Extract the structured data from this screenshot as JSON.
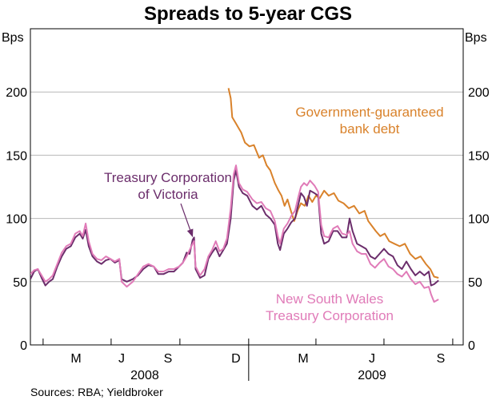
{
  "chart_data": {
    "type": "line",
    "title": "Spreads to 5-year CGS",
    "y_unit_left": "Bps",
    "y_unit_right": "Bps",
    "ylim": [
      0,
      250
    ],
    "yticks": [
      0,
      50,
      100,
      150,
      200
    ],
    "x_range": [
      "2008-03-15",
      "2009-10-15"
    ],
    "month_labels": [
      {
        "label": "M",
        "date": "2008-05-15"
      },
      {
        "label": "J",
        "date": "2008-07-15"
      },
      {
        "label": "S",
        "date": "2008-09-15"
      },
      {
        "label": "D",
        "date": "2008-12-15"
      },
      {
        "label": "M",
        "date": "2009-03-15"
      },
      {
        "label": "J",
        "date": "2009-06-15"
      },
      {
        "label": "S",
        "date": "2009-09-15"
      }
    ],
    "year_labels": [
      {
        "label": "2008",
        "date": "2008-08-15"
      },
      {
        "label": "2009",
        "date": "2009-06-15"
      }
    ],
    "grid": true,
    "series": [
      {
        "name": "Government-guaranteed bank debt",
        "color": "#d9822b",
        "label_lines": [
          "Government-guaranteed",
          "bank debt"
        ],
        "points": [
          [
            "2008-12-05",
            203
          ],
          [
            "2008-12-08",
            195
          ],
          [
            "2008-12-10",
            180
          ],
          [
            "2008-12-15",
            175
          ],
          [
            "2008-12-18",
            172
          ],
          [
            "2008-12-22",
            168
          ],
          [
            "2008-12-27",
            160
          ],
          [
            "2009-01-02",
            157
          ],
          [
            "2009-01-08",
            158
          ],
          [
            "2009-01-15",
            148
          ],
          [
            "2009-01-20",
            150
          ],
          [
            "2009-01-25",
            142
          ],
          [
            "2009-01-30",
            138
          ],
          [
            "2009-02-05",
            128
          ],
          [
            "2009-02-10",
            122
          ],
          [
            "2009-02-14",
            118
          ],
          [
            "2009-02-18",
            110
          ],
          [
            "2009-02-22",
            115
          ],
          [
            "2009-02-27",
            105
          ],
          [
            "2009-03-03",
            98
          ],
          [
            "2009-03-08",
            107
          ],
          [
            "2009-03-12",
            112
          ],
          [
            "2009-03-17",
            110
          ],
          [
            "2009-03-22",
            118
          ],
          [
            "2009-03-27",
            113
          ],
          [
            "2009-04-01",
            118
          ],
          [
            "2009-04-06",
            116
          ],
          [
            "2009-04-12",
            122
          ],
          [
            "2009-04-18",
            118
          ],
          [
            "2009-04-25",
            120
          ],
          [
            "2009-05-01",
            114
          ],
          [
            "2009-05-08",
            112
          ],
          [
            "2009-05-15",
            108
          ],
          [
            "2009-05-22",
            110
          ],
          [
            "2009-05-29",
            104
          ],
          [
            "2009-06-05",
            106
          ],
          [
            "2009-06-10",
            98
          ],
          [
            "2009-06-15",
            94
          ],
          [
            "2009-06-20",
            90
          ],
          [
            "2009-06-26",
            86
          ],
          [
            "2009-07-02",
            88
          ],
          [
            "2009-07-08",
            82
          ],
          [
            "2009-07-15",
            80
          ],
          [
            "2009-07-22",
            78
          ],
          [
            "2009-07-29",
            80
          ],
          [
            "2009-08-05",
            72
          ],
          [
            "2009-08-12",
            68
          ],
          [
            "2009-08-19",
            70
          ],
          [
            "2009-08-26",
            64
          ],
          [
            "2009-09-01",
            60
          ],
          [
            "2009-09-06",
            54
          ],
          [
            "2009-09-12",
            53
          ]
        ]
      },
      {
        "name": "Treasury Corporation of Victoria",
        "color": "#6b2d6b",
        "label_lines": [
          "Treasury Corporation",
          "of Victoria"
        ],
        "points": [
          [
            "2008-03-15",
            52
          ],
          [
            "2008-03-20",
            58
          ],
          [
            "2008-03-25",
            60
          ],
          [
            "2008-03-30",
            53
          ],
          [
            "2008-04-04",
            47
          ],
          [
            "2008-04-09",
            50
          ],
          [
            "2008-04-14",
            52
          ],
          [
            "2008-04-20",
            62
          ],
          [
            "2008-04-26",
            70
          ],
          [
            "2008-05-02",
            76
          ],
          [
            "2008-05-08",
            78
          ],
          [
            "2008-05-14",
            85
          ],
          [
            "2008-05-20",
            88
          ],
          [
            "2008-05-24",
            84
          ],
          [
            "2008-05-28",
            91
          ],
          [
            "2008-06-01",
            78
          ],
          [
            "2008-06-06",
            70
          ],
          [
            "2008-06-12",
            66
          ],
          [
            "2008-06-18",
            64
          ],
          [
            "2008-06-24",
            67
          ],
          [
            "2008-06-30",
            68
          ],
          [
            "2008-07-06",
            65
          ],
          [
            "2008-07-12",
            67
          ],
          [
            "2008-07-15",
            52
          ],
          [
            "2008-07-22",
            50
          ],
          [
            "2008-07-30",
            52
          ],
          [
            "2008-08-06",
            55
          ],
          [
            "2008-08-13",
            60
          ],
          [
            "2008-08-20",
            63
          ],
          [
            "2008-08-27",
            62
          ],
          [
            "2008-09-02",
            56
          ],
          [
            "2008-09-09",
            56
          ],
          [
            "2008-09-16",
            58
          ],
          [
            "2008-09-23",
            58
          ],
          [
            "2008-09-30",
            62
          ],
          [
            "2008-10-05",
            65
          ],
          [
            "2008-10-10",
            73
          ],
          [
            "2008-10-14",
            72
          ],
          [
            "2008-10-18",
            83
          ],
          [
            "2008-10-20",
            85
          ],
          [
            "2008-10-22",
            60
          ],
          [
            "2008-10-28",
            53
          ],
          [
            "2008-11-03",
            55
          ],
          [
            "2008-11-08",
            68
          ],
          [
            "2008-11-13",
            73
          ],
          [
            "2008-11-18",
            77
          ],
          [
            "2008-11-23",
            70
          ],
          [
            "2008-11-28",
            75
          ],
          [
            "2008-12-03",
            80
          ],
          [
            "2008-12-08",
            100
          ],
          [
            "2008-12-12",
            130
          ],
          [
            "2008-12-15",
            138
          ],
          [
            "2008-12-19",
            125
          ],
          [
            "2008-12-24",
            120
          ],
          [
            "2008-12-30",
            118
          ],
          [
            "2009-01-06",
            110
          ],
          [
            "2009-01-12",
            107
          ],
          [
            "2009-01-18",
            110
          ],
          [
            "2009-01-24",
            103
          ],
          [
            "2009-01-30",
            100
          ],
          [
            "2009-02-05",
            95
          ],
          [
            "2009-02-09",
            80
          ],
          [
            "2009-02-12",
            75
          ],
          [
            "2009-02-17",
            88
          ],
          [
            "2009-02-22",
            92
          ],
          [
            "2009-02-27",
            97
          ],
          [
            "2009-03-04",
            100
          ],
          [
            "2009-03-08",
            110
          ],
          [
            "2009-03-12",
            120
          ],
          [
            "2009-03-16",
            117
          ],
          [
            "2009-03-20",
            110
          ],
          [
            "2009-03-24",
            122
          ],
          [
            "2009-03-30",
            120
          ],
          [
            "2009-04-04",
            118
          ],
          [
            "2009-04-08",
            88
          ],
          [
            "2009-04-12",
            80
          ],
          [
            "2009-04-18",
            82
          ],
          [
            "2009-04-24",
            90
          ],
          [
            "2009-04-30",
            90
          ],
          [
            "2009-05-06",
            85
          ],
          [
            "2009-05-12",
            85
          ],
          [
            "2009-05-16",
            100
          ],
          [
            "2009-05-20",
            90
          ],
          [
            "2009-05-26",
            80
          ],
          [
            "2009-06-01",
            78
          ],
          [
            "2009-06-07",
            76
          ],
          [
            "2009-06-13",
            70
          ],
          [
            "2009-06-19",
            68
          ],
          [
            "2009-06-25",
            72
          ],
          [
            "2009-07-01",
            76
          ],
          [
            "2009-07-07",
            72
          ],
          [
            "2009-07-13",
            70
          ],
          [
            "2009-07-19",
            63
          ],
          [
            "2009-07-25",
            60
          ],
          [
            "2009-07-31",
            66
          ],
          [
            "2009-08-06",
            60
          ],
          [
            "2009-08-12",
            55
          ],
          [
            "2009-08-18",
            58
          ],
          [
            "2009-08-24",
            55
          ],
          [
            "2009-08-30",
            58
          ],
          [
            "2009-09-02",
            47
          ],
          [
            "2009-09-06",
            48
          ],
          [
            "2009-09-12",
            51
          ]
        ]
      },
      {
        "name": "New South Wales Treasury Corporation",
        "color": "#e07bb8",
        "label_lines": [
          "New South Wales",
          "Treasury Corporation"
        ],
        "points": [
          [
            "2008-03-15",
            56
          ],
          [
            "2008-03-20",
            59
          ],
          [
            "2008-03-25",
            60
          ],
          [
            "2008-03-30",
            55
          ],
          [
            "2008-04-04",
            50
          ],
          [
            "2008-04-09",
            52
          ],
          [
            "2008-04-14",
            55
          ],
          [
            "2008-04-20",
            64
          ],
          [
            "2008-04-26",
            73
          ],
          [
            "2008-05-02",
            78
          ],
          [
            "2008-05-08",
            80
          ],
          [
            "2008-05-14",
            88
          ],
          [
            "2008-05-20",
            90
          ],
          [
            "2008-05-24",
            86
          ],
          [
            "2008-05-28",
            96
          ],
          [
            "2008-06-01",
            82
          ],
          [
            "2008-06-06",
            72
          ],
          [
            "2008-06-12",
            68
          ],
          [
            "2008-06-18",
            67
          ],
          [
            "2008-06-24",
            70
          ],
          [
            "2008-06-30",
            68
          ],
          [
            "2008-07-06",
            66
          ],
          [
            "2008-07-12",
            68
          ],
          [
            "2008-07-15",
            50
          ],
          [
            "2008-07-22",
            46
          ],
          [
            "2008-07-30",
            50
          ],
          [
            "2008-08-06",
            56
          ],
          [
            "2008-08-13",
            62
          ],
          [
            "2008-08-20",
            64
          ],
          [
            "2008-08-27",
            62
          ],
          [
            "2008-09-02",
            58
          ],
          [
            "2008-09-09",
            58
          ],
          [
            "2008-09-16",
            60
          ],
          [
            "2008-09-23",
            60
          ],
          [
            "2008-09-30",
            62
          ],
          [
            "2008-10-05",
            65
          ],
          [
            "2008-10-10",
            70
          ],
          [
            "2008-10-14",
            75
          ],
          [
            "2008-10-18",
            80
          ],
          [
            "2008-10-20",
            82
          ],
          [
            "2008-10-22",
            62
          ],
          [
            "2008-10-28",
            55
          ],
          [
            "2008-11-03",
            60
          ],
          [
            "2008-11-08",
            70
          ],
          [
            "2008-11-13",
            75
          ],
          [
            "2008-11-18",
            82
          ],
          [
            "2008-11-23",
            74
          ],
          [
            "2008-11-28",
            76
          ],
          [
            "2008-12-03",
            84
          ],
          [
            "2008-12-08",
            108
          ],
          [
            "2008-12-12",
            135
          ],
          [
            "2008-12-15",
            142
          ],
          [
            "2008-12-19",
            128
          ],
          [
            "2008-12-24",
            123
          ],
          [
            "2008-12-30",
            121
          ],
          [
            "2009-01-06",
            115
          ],
          [
            "2009-01-12",
            112
          ],
          [
            "2009-01-18",
            113
          ],
          [
            "2009-01-24",
            108
          ],
          [
            "2009-01-30",
            106
          ],
          [
            "2009-02-05",
            98
          ],
          [
            "2009-02-09",
            86
          ],
          [
            "2009-02-12",
            80
          ],
          [
            "2009-02-17",
            92
          ],
          [
            "2009-02-22",
            96
          ],
          [
            "2009-02-27",
            102
          ],
          [
            "2009-03-04",
            106
          ],
          [
            "2009-03-08",
            116
          ],
          [
            "2009-03-12",
            125
          ],
          [
            "2009-03-16",
            128
          ],
          [
            "2009-03-20",
            126
          ],
          [
            "2009-03-24",
            130
          ],
          [
            "2009-03-30",
            126
          ],
          [
            "2009-04-04",
            121
          ],
          [
            "2009-04-08",
            95
          ],
          [
            "2009-04-12",
            86
          ],
          [
            "2009-04-18",
            85
          ],
          [
            "2009-04-24",
            92
          ],
          [
            "2009-04-30",
            94
          ],
          [
            "2009-05-06",
            88
          ],
          [
            "2009-05-12",
            87
          ],
          [
            "2009-05-16",
            90
          ],
          [
            "2009-05-20",
            80
          ],
          [
            "2009-05-26",
            74
          ],
          [
            "2009-06-01",
            72
          ],
          [
            "2009-06-07",
            72
          ],
          [
            "2009-06-13",
            64
          ],
          [
            "2009-06-19",
            61
          ],
          [
            "2009-06-25",
            65
          ],
          [
            "2009-07-01",
            68
          ],
          [
            "2009-07-07",
            62
          ],
          [
            "2009-07-13",
            60
          ],
          [
            "2009-07-19",
            56
          ],
          [
            "2009-07-25",
            54
          ],
          [
            "2009-07-31",
            58
          ],
          [
            "2009-08-06",
            52
          ],
          [
            "2009-08-12",
            48
          ],
          [
            "2009-08-18",
            50
          ],
          [
            "2009-08-24",
            45
          ],
          [
            "2009-08-30",
            46
          ],
          [
            "2009-09-02",
            40
          ],
          [
            "2009-09-06",
            34
          ],
          [
            "2009-09-12",
            36
          ]
        ]
      }
    ],
    "annotation_arrow": {
      "series": "Treasury Corporation of Victoria",
      "target": [
        "2008-10-20",
        87
      ]
    }
  },
  "source": "Sources: RBA; Yieldbroker"
}
